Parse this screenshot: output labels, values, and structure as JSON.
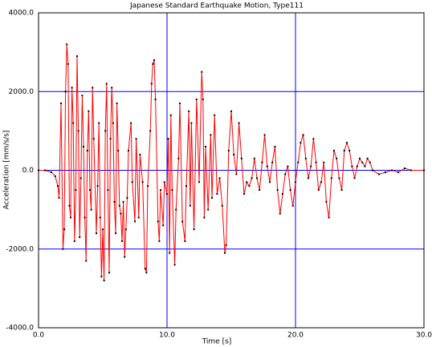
{
  "chart_data": {
    "type": "line",
    "title": "Japanese Standard Earthquake Motion, Type111",
    "xlabel": "Time [s]",
    "ylabel": "Acceleration [mm/s/s]",
    "x": [
      0.0,
      0.5,
      1.0,
      1.3,
      1.5,
      1.6,
      1.75,
      1.9,
      2.0,
      2.1,
      2.2,
      2.3,
      2.4,
      2.5,
      2.6,
      2.7,
      2.8,
      2.9,
      3.0,
      3.1,
      3.2,
      3.3,
      3.4,
      3.5,
      3.6,
      3.7,
      3.8,
      3.9,
      4.0,
      4.1,
      4.2,
      4.3,
      4.5,
      4.6,
      4.7,
      4.8,
      4.9,
      5.0,
      5.1,
      5.2,
      5.3,
      5.4,
      5.5,
      5.6,
      5.7,
      5.8,
      5.9,
      6.0,
      6.1,
      6.2,
      6.3,
      6.4,
      6.5,
      6.6,
      6.7,
      6.8,
      6.9,
      7.0,
      7.2,
      7.3,
      7.5,
      7.6,
      7.8,
      7.9,
      8.1,
      8.3,
      8.4,
      8.5,
      8.7,
      8.8,
      8.9,
      9.0,
      9.1,
      9.3,
      9.4,
      9.5,
      9.7,
      9.8,
      10.0,
      10.1,
      10.2,
      10.3,
      10.4,
      10.6,
      10.7,
      10.9,
      11.0,
      11.2,
      11.4,
      11.5,
      11.7,
      11.8,
      11.9,
      12.1,
      12.3,
      12.5,
      12.7,
      12.8,
      12.9,
      13.0,
      13.2,
      13.4,
      13.5,
      13.7,
      13.9,
      14.1,
      14.3,
      14.5,
      14.6,
      14.8,
      15.0,
      15.2,
      15.4,
      15.6,
      15.8,
      16.0,
      16.2,
      16.4,
      16.6,
      16.8,
      17.0,
      17.2,
      17.4,
      17.6,
      17.8,
      18.0,
      18.2,
      18.4,
      18.6,
      18.8,
      19.0,
      19.2,
      19.4,
      19.6,
      19.8,
      20.0,
      20.2,
      20.4,
      20.6,
      20.8,
      21.0,
      21.2,
      21.4,
      21.6,
      21.8,
      22.0,
      22.2,
      22.4,
      22.6,
      22.8,
      23.0,
      23.2,
      23.4,
      23.6,
      23.8,
      24.0,
      24.2,
      24.4,
      24.6,
      24.8,
      25.0,
      25.2,
      25.4,
      25.6,
      25.8,
      26.0,
      26.5,
      27.0,
      27.5,
      28.0,
      28.5,
      29.0,
      30.0
    ],
    "values": [
      0,
      0,
      -50,
      -150,
      -400,
      -700,
      1700,
      -2000,
      -1500,
      2000,
      3200,
      2700,
      -900,
      -1200,
      2100,
      1200,
      -1800,
      -500,
      2900,
      1000,
      -1700,
      -200,
      1900,
      600,
      -1200,
      -2300,
      500,
      1500,
      -500,
      -1000,
      2100,
      800,
      -1600,
      -400,
      1200,
      -1200,
      -2700,
      -1500,
      -2800,
      1000,
      2200,
      -500,
      -2600,
      800,
      2100,
      1200,
      -800,
      -1600,
      1700,
      500,
      -900,
      -1100,
      -1800,
      -800,
      -2200,
      -1500,
      -700,
      500,
      1200,
      -300,
      -1300,
      800,
      -1200,
      400,
      -300,
      -2500,
      -2600,
      -400,
      1000,
      2200,
      2700,
      2800,
      1800,
      -1300,
      -1800,
      -500,
      -1400,
      -300,
      -600,
      800,
      -2100,
      1400,
      -500,
      -2400,
      -1000,
      300,
      1700,
      -1300,
      -1800,
      -400,
      1500,
      -900,
      1200,
      -1500,
      1800,
      -300,
      2500,
      1800,
      -1200,
      600,
      -1000,
      900,
      -700,
      1400,
      -600,
      -200,
      -900,
      -2100,
      -1900,
      500,
      1500,
      400,
      -100,
      1200,
      300,
      -600,
      -300,
      -400,
      -200,
      300,
      -200,
      -500,
      200,
      900,
      100,
      -300,
      200,
      600,
      -500,
      -1100,
      -600,
      -100,
      100,
      -500,
      -900,
      -300,
      200,
      700,
      900,
      300,
      -200,
      100,
      800,
      200,
      -500,
      -300,
      200,
      -800,
      -1200,
      -200,
      500,
      300,
      -200,
      -500,
      500,
      700,
      500,
      100,
      -200,
      100,
      300,
      200,
      100,
      300,
      200,
      0,
      -100,
      -50,
      0,
      -50,
      50,
      0,
      0
    ],
    "color": "#ff0000",
    "marker_color": "#000000",
    "grid": true,
    "grid_color": "#0000ff",
    "xlim": [
      0,
      30
    ],
    "xticks": [
      {
        "value": 0,
        "label": "0.0"
      },
      {
        "value": 10,
        "label": "10.0"
      },
      {
        "value": 20,
        "label": "20.0"
      },
      {
        "value": 30,
        "label": "30.0"
      }
    ],
    "ylim": [
      -4000,
      4000
    ],
    "yticks": [
      {
        "value": -4000,
        "label": "-4000.0"
      },
      {
        "value": -2000,
        "label": "-2000.0"
      },
      {
        "value": 0,
        "label": "0.0"
      },
      {
        "value": 2000,
        "label": "2000.0"
      },
      {
        "value": 4000,
        "label": "4000.0"
      }
    ]
  }
}
